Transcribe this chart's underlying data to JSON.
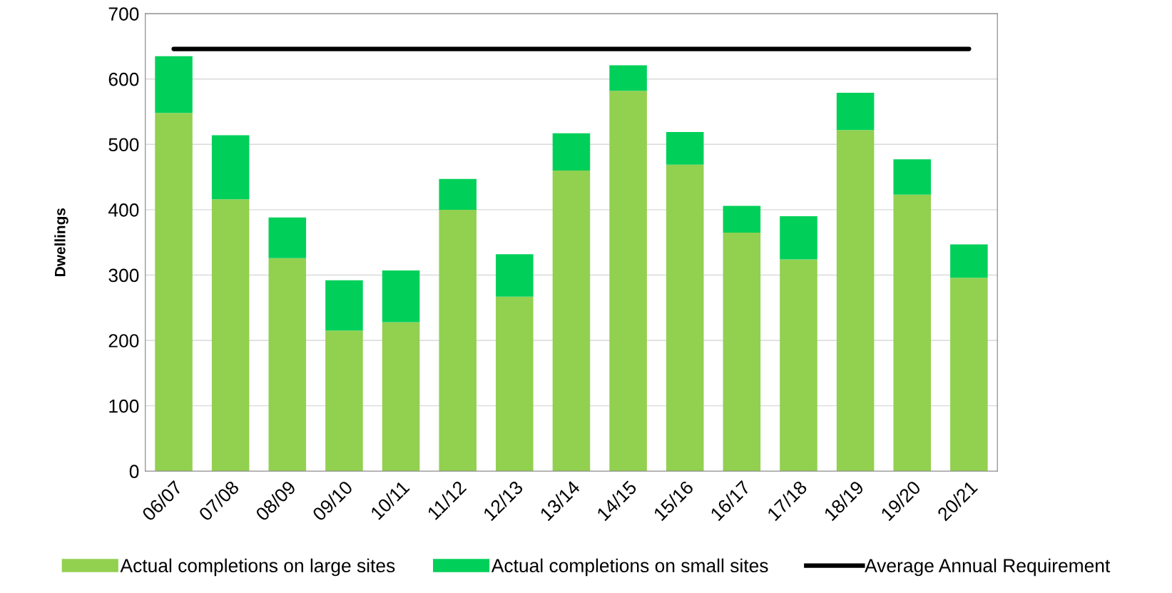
{
  "chart_data": {
    "type": "bar",
    "stacked": true,
    "ylabel": "Dwellings",
    "categories": [
      "06/07",
      "07/08",
      "08/09",
      "09/10",
      "10/11",
      "11/12",
      "12/13",
      "13/14",
      "14/15",
      "15/16",
      "16/17",
      "17/18",
      "18/19",
      "19/20",
      "20/21"
    ],
    "series": [
      {
        "name": "Actual completions on large sites",
        "color": "#92d050",
        "values": [
          548,
          416,
          326,
          215,
          228,
          400,
          267,
          460,
          582,
          469,
          365,
          324,
          522,
          423,
          296
        ]
      },
      {
        "name": "Actual completions on small sites",
        "color": "#00d05a",
        "values": [
          87,
          98,
          62,
          77,
          79,
          47,
          65,
          57,
          39,
          50,
          41,
          66,
          57,
          54,
          51
        ]
      },
      {
        "name": "Average Annual Requirement",
        "type": "line",
        "color": "#000000",
        "values": [
          646,
          646,
          646,
          646,
          646,
          646,
          646,
          646,
          646,
          646,
          646,
          646,
          646,
          646,
          646
        ]
      }
    ],
    "ylim": [
      0,
      700
    ],
    "yticks": [
      0,
      100,
      200,
      300,
      400,
      500,
      600,
      700
    ],
    "grid": "y",
    "legend": "bottom",
    "marker": "none",
    "line_style": "solid"
  }
}
